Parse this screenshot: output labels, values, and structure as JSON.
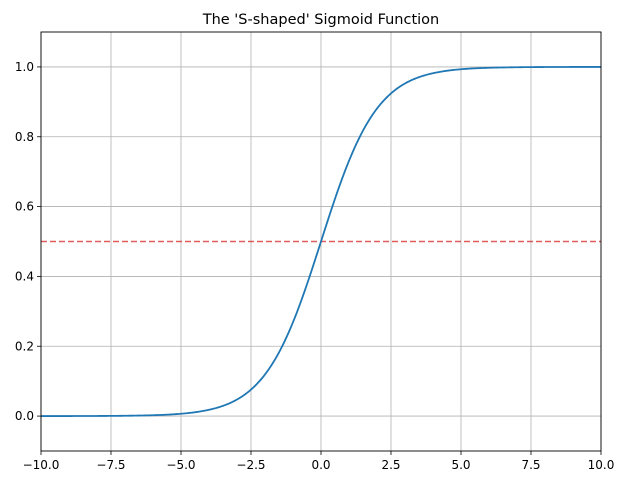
{
  "chart_data": {
    "type": "line",
    "title": "The 'S-shaped' Sigmoid Function",
    "xlabel": "",
    "ylabel": "",
    "xlim": [
      -10.0,
      10.0
    ],
    "ylim": [
      -0.1,
      1.1
    ],
    "grid": true,
    "xticks": [
      -10.0,
      -7.5,
      -5.0,
      -2.5,
      0.0,
      2.5,
      5.0,
      7.5,
      10.0
    ],
    "xtick_labels": [
      "−10.0",
      "−7.5",
      "−5.0",
      "−2.5",
      "0.0",
      "2.5",
      "5.0",
      "7.5",
      "10.0"
    ],
    "yticks": [
      0.0,
      0.2,
      0.4,
      0.6,
      0.8,
      1.0
    ],
    "ytick_labels": [
      "0.0",
      "0.2",
      "0.4",
      "0.6",
      "0.8",
      "1.0"
    ],
    "series": [
      {
        "function": "sigmoid",
        "color": "#1f77b4",
        "x": [
          -10,
          -9,
          -8,
          -7,
          -6,
          -5,
          -4.5,
          -4,
          -3.5,
          -3,
          -2.5,
          -2,
          -1.5,
          -1,
          -0.5,
          0,
          0.5,
          1,
          1.5,
          2,
          2.5,
          3,
          3.5,
          4,
          4.5,
          5,
          6,
          7,
          8,
          9,
          10
        ],
        "y": [
          5e-05,
          0.00012,
          0.00034,
          0.00091,
          0.00247,
          0.00669,
          0.01099,
          0.01799,
          0.02931,
          0.04743,
          0.07586,
          0.1192,
          0.18243,
          0.26894,
          0.37754,
          0.5,
          0.62246,
          0.73106,
          0.81757,
          0.8808,
          0.92414,
          0.95257,
          0.97069,
          0.98201,
          0.98901,
          0.99331,
          0.99753,
          0.99909,
          0.99966,
          0.99988,
          0.99995
        ]
      }
    ],
    "reference_lines": [
      {
        "orientation": "horizontal",
        "y": 0.5,
        "style": "dashed",
        "color": "#d62728"
      }
    ]
  }
}
